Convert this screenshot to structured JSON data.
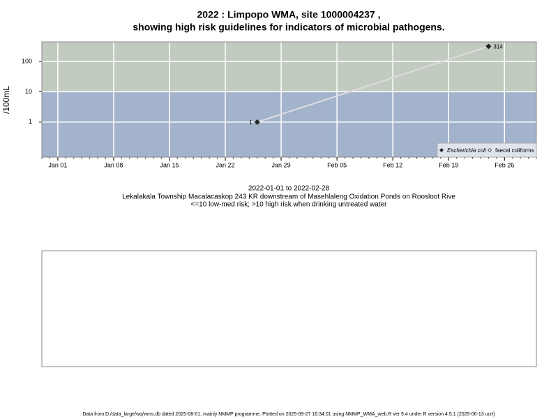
{
  "chart_data": {
    "type": "line",
    "title": "2022 : Limpopo WMA, site 1000004237 ,",
    "title_line2": "showing high risk guidelines for indicators of microbial pathogens.",
    "ylabel": "/100mL",
    "subtitle": [
      "2022-01-01 to 2022-02-28",
      "Lekalakala Township Macalacaskop 243 KR downstream of Masehlaleng Oxidation Ponds on Roosloot Rive",
      "<=10 low-med risk; >10 high risk when drinking untreated water"
    ],
    "footer": "Data from D:/data_large/wq/wms.db dated 2025-08-01, mainly NMMP programme. Plotted on 2025-09-27 16:34:01 using NMMP_WMA_web.R ver 9.4 under R version 4.5.1 (2025-06-13 ucrt)",
    "x": [
      "2022-01-26",
      "2022-02-24"
    ],
    "series": [
      {
        "name": "Escherichia coli",
        "color": "#222222",
        "line_color": "#dddddd",
        "values": [
          1,
          314
        ]
      },
      {
        "name": "faecal coliforms",
        "color": "#222222",
        "values": [
          null,
          null
        ]
      }
    ],
    "log_y": true,
    "ylim": [
      0.07,
      440
    ],
    "yticks": [
      1,
      10,
      100
    ],
    "xlim": [
      "2021-12-30",
      "2022-03-02"
    ],
    "xticks": [
      {
        "value": "2022-01-01",
        "label": "Jan 01"
      },
      {
        "value": "2022-01-08",
        "label": "Jan 08"
      },
      {
        "value": "2022-01-15",
        "label": "Jan 15"
      },
      {
        "value": "2022-01-22",
        "label": "Jan 22"
      },
      {
        "value": "2022-01-29",
        "label": "Jan 29"
      },
      {
        "value": "2022-02-05",
        "label": "Feb 05"
      },
      {
        "value": "2022-02-12",
        "label": "Feb 12"
      },
      {
        "value": "2022-02-19",
        "label": "Feb 19"
      },
      {
        "value": "2022-02-26",
        "label": "Feb 26"
      }
    ],
    "threshold": 10,
    "low_color": "#a3b3cc",
    "high_color": "#c2cbbf",
    "grid": true,
    "legend": "bottom-right"
  }
}
